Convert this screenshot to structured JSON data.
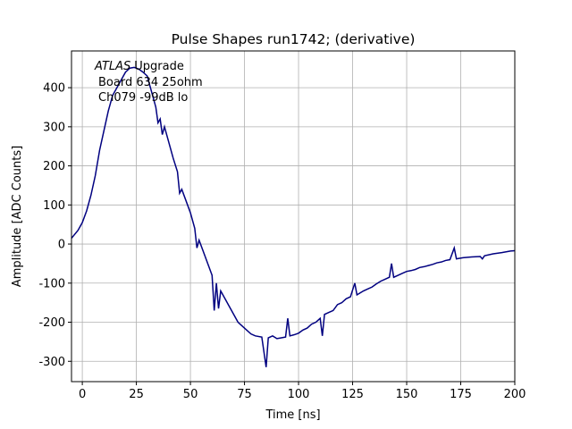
{
  "chart_data": {
    "type": "line",
    "title": "Pulse Shapes run1742; (derivative)",
    "xlabel": "Time [ns]",
    "ylabel": "Amplitude [ADC Counts]",
    "annotation": [
      "ATLAS",
      "Upgrade",
      "Board 634 25ohm",
      "Ch079 -99dB lo"
    ],
    "color": "#000080",
    "grid": true,
    "xlim": [
      -5,
      200
    ],
    "ylim": [
      -352,
      494
    ],
    "xticks": [
      0,
      25,
      50,
      75,
      100,
      125,
      150,
      175,
      200
    ],
    "yticks": [
      -300,
      -200,
      -100,
      0,
      100,
      200,
      300,
      400
    ],
    "x": [
      -5,
      -2,
      0,
      2,
      4,
      6,
      8,
      10,
      12,
      14,
      16,
      18,
      20,
      22,
      24,
      26,
      28,
      30,
      32,
      34,
      35,
      36,
      37,
      38,
      40,
      42,
      44,
      45,
      46,
      48,
      50,
      52,
      53,
      54,
      56,
      58,
      60,
      61,
      62,
      63,
      64,
      66,
      68,
      70,
      72,
      74,
      76,
      78,
      80,
      83,
      85,
      86,
      88,
      90,
      92,
      94,
      95,
      96,
      98,
      100,
      102,
      104,
      106,
      108,
      110,
      111,
      112,
      114,
      116,
      118,
      120,
      122,
      124,
      126,
      127,
      130,
      132,
      134,
      136,
      138,
      140,
      142,
      143,
      144,
      146,
      148,
      150,
      152,
      154,
      156,
      158,
      160,
      162,
      164,
      166,
      168,
      170,
      172,
      173,
      176,
      180,
      184,
      185,
      186,
      190,
      194,
      198,
      200
    ],
    "values": [
      15,
      35,
      55,
      85,
      125,
      175,
      240,
      290,
      340,
      380,
      400,
      420,
      440,
      450,
      452,
      448,
      440,
      430,
      390,
      350,
      310,
      320,
      280,
      300,
      260,
      220,
      185,
      130,
      140,
      110,
      80,
      40,
      -10,
      10,
      -20,
      -50,
      -80,
      -170,
      -100,
      -165,
      -120,
      -140,
      -160,
      -180,
      -200,
      -210,
      -220,
      -230,
      -235,
      -238,
      -315,
      -240,
      -235,
      -242,
      -240,
      -238,
      -190,
      -235,
      -232,
      -228,
      -220,
      -215,
      -205,
      -200,
      -190,
      -235,
      -180,
      -175,
      -170,
      -155,
      -150,
      -140,
      -135,
      -100,
      -130,
      -120,
      -115,
      -110,
      -102,
      -95,
      -90,
      -85,
      -50,
      -85,
      -80,
      -75,
      -70,
      -68,
      -65,
      -60,
      -58,
      -55,
      -52,
      -48,
      -46,
      -42,
      -40,
      -10,
      -38,
      -35,
      -33,
      -32,
      -38,
      -30,
      -25,
      -22,
      -18,
      -17
    ]
  }
}
